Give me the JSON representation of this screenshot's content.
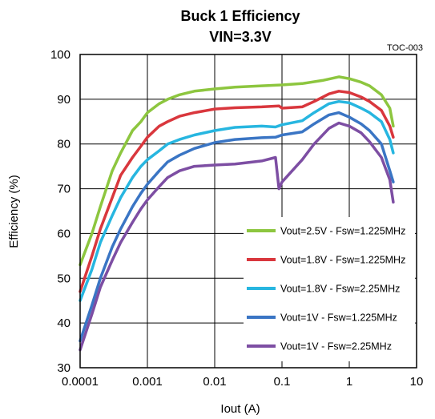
{
  "chart_data": {
    "type": "line",
    "title": "Buck 1 Efficiency",
    "subtitle": "VIN=3.3V",
    "tag": "TOC-003",
    "xlabel": "Iout (A)",
    "ylabel": "Efficiency (%)",
    "xscale": "log",
    "xlim": [
      0.0001,
      5
    ],
    "ylim": [
      30,
      100
    ],
    "xticks": [
      0.0001,
      0.001,
      0.01,
      0.1,
      1,
      10
    ],
    "xtick_labels": [
      "0.0001",
      "0.001",
      "0.01",
      "0.1",
      "1",
      "10"
    ],
    "yticks": [
      30,
      40,
      50,
      60,
      70,
      80,
      90,
      100
    ],
    "ytick_labels": [
      "30",
      "40",
      "50",
      "60",
      "70",
      "80",
      "90",
      "100"
    ],
    "grid": true,
    "legend_position": "bottom-right",
    "series": [
      {
        "name": "Vout=2.5V - Fsw=1.225MHz",
        "color": "#8dc63f",
        "x": [
          0.0001,
          0.00015,
          0.0002,
          0.0003,
          0.0004,
          0.0006,
          0.0008,
          0.001,
          0.0015,
          0.002,
          0.003,
          0.005,
          0.01,
          0.02,
          0.05,
          0.1,
          0.2,
          0.4,
          0.7,
          1,
          1.5,
          2,
          3,
          4,
          4.5
        ],
        "y": [
          53,
          60,
          66,
          74,
          78,
          83,
          85,
          87,
          89,
          90,
          91,
          91.8,
          92.3,
          92.7,
          93,
          93.2,
          93.5,
          94.2,
          95,
          94.6,
          93.8,
          93,
          91,
          88,
          84
        ]
      },
      {
        "name": "Vout=1.8V - Fsw=1.225MHz",
        "color": "#d9373d",
        "x": [
          0.0001,
          0.00015,
          0.0002,
          0.0003,
          0.0004,
          0.0006,
          0.0008,
          0.001,
          0.0015,
          0.002,
          0.003,
          0.005,
          0.01,
          0.02,
          0.05,
          0.09,
          0.1,
          0.2,
          0.3,
          0.5,
          0.7,
          1,
          1.5,
          2,
          3,
          4,
          4.5
        ],
        "y": [
          47,
          55,
          61,
          68,
          73,
          77,
          79.5,
          81.5,
          84,
          85,
          86.2,
          87,
          87.8,
          88.1,
          88.3,
          88.5,
          88,
          88.3,
          89.5,
          91.2,
          91.8,
          91.5,
          90.5,
          89.5,
          87.5,
          84,
          81.5
        ]
      },
      {
        "name": "Vout=1.8V - Fsw=2.25MHz",
        "color": "#27b6e0",
        "x": [
          0.0001,
          0.00015,
          0.0002,
          0.0003,
          0.0004,
          0.0006,
          0.0008,
          0.001,
          0.0015,
          0.002,
          0.003,
          0.005,
          0.01,
          0.02,
          0.05,
          0.08,
          0.1,
          0.2,
          0.3,
          0.5,
          0.7,
          1,
          1.5,
          2,
          3,
          4,
          4.5
        ],
        "y": [
          45,
          52,
          58,
          64,
          68,
          72.5,
          75,
          76.5,
          78.5,
          80,
          81,
          82,
          83,
          83.7,
          84,
          83.8,
          84.3,
          85.2,
          87,
          89,
          89.5,
          89.2,
          88,
          87,
          85,
          81,
          78
        ]
      },
      {
        "name": "Vout=1V - Fsw=1.225MHz",
        "color": "#3a75c4",
        "x": [
          0.0001,
          0.00015,
          0.0002,
          0.0003,
          0.0004,
          0.0006,
          0.0008,
          0.001,
          0.0015,
          0.002,
          0.003,
          0.005,
          0.01,
          0.02,
          0.05,
          0.08,
          0.1,
          0.2,
          0.3,
          0.5,
          0.7,
          1,
          1.5,
          2,
          3,
          4,
          4.5
        ],
        "y": [
          36,
          44,
          50,
          57,
          61,
          66,
          69,
          71,
          74,
          76,
          77.5,
          79,
          80.3,
          81,
          81.4,
          81.5,
          82,
          82.7,
          84.5,
          86.5,
          87,
          86,
          84.5,
          83,
          80,
          74,
          71.5
        ]
      },
      {
        "name": "Vout=1V - Fsw=2.25MHz",
        "color": "#7d4ea3",
        "x": [
          0.0001,
          0.00015,
          0.0002,
          0.0003,
          0.0004,
          0.0006,
          0.0008,
          0.001,
          0.0015,
          0.002,
          0.003,
          0.005,
          0.01,
          0.02,
          0.05,
          0.08,
          0.09,
          0.1,
          0.2,
          0.3,
          0.5,
          0.7,
          1,
          1.5,
          2,
          3,
          4,
          4.5
        ],
        "y": [
          34,
          42,
          48,
          54,
          58,
          62.5,
          65.5,
          67.5,
          70.5,
          72.5,
          74,
          75,
          75.3,
          75.5,
          76.2,
          77,
          70,
          71.5,
          76.5,
          80,
          83.5,
          84.7,
          84,
          82.5,
          80.5,
          77,
          72,
          67
        ]
      }
    ]
  }
}
